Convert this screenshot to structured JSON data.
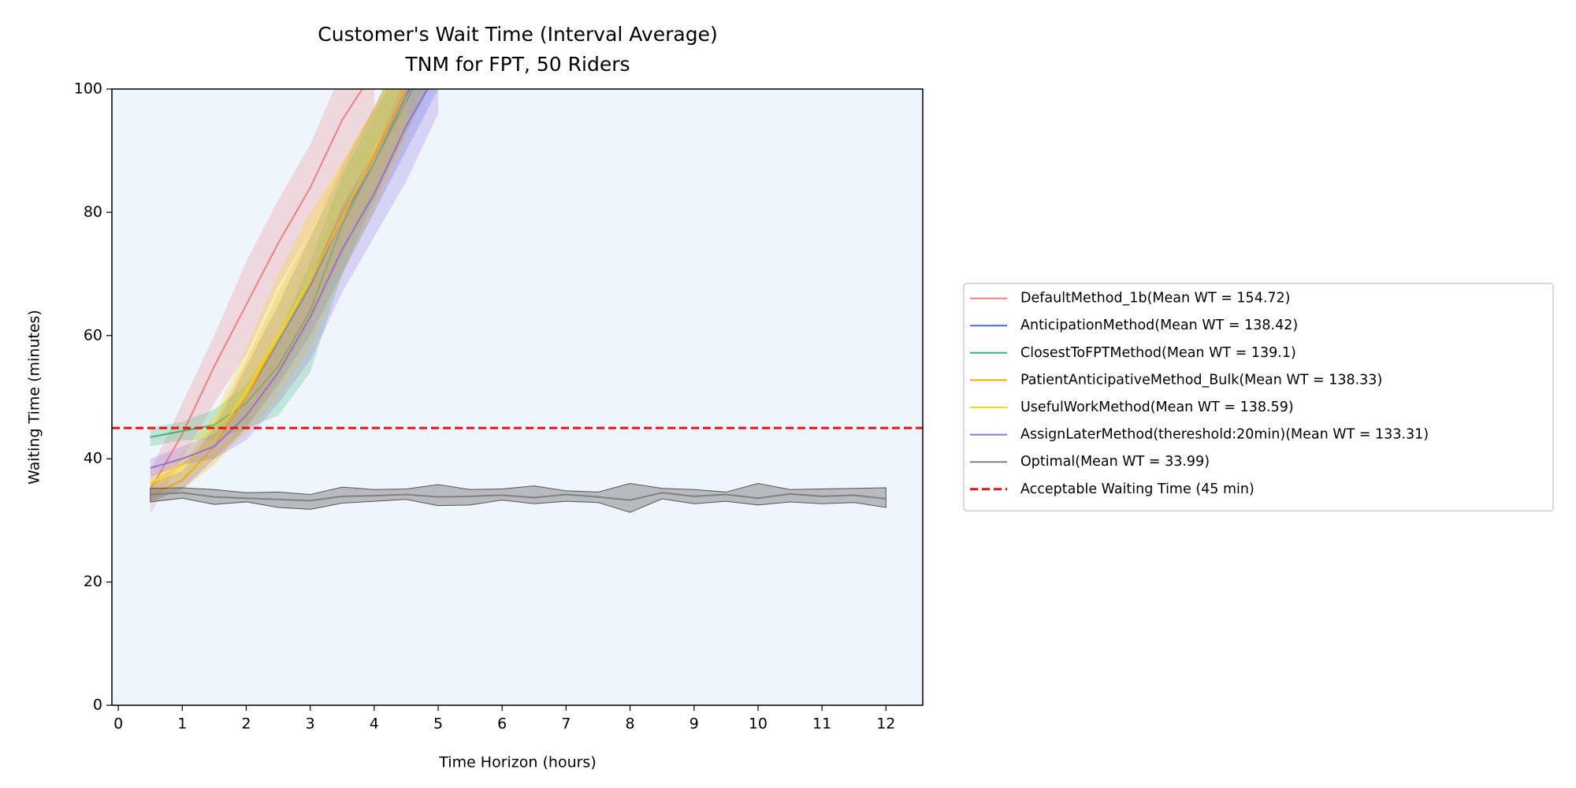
{
  "chart_data": {
    "type": "line",
    "title": "Customer's Wait Time (Interval Average)",
    "subtitle": "TNM for FPT, 50 Riders",
    "x_label": "Time Horizon (hours)",
    "y_label": "Waiting Time (minutes)",
    "x": [
      0.5,
      1,
      1.5,
      2,
      2.5,
      3,
      3.5,
      4,
      4.5,
      5,
      5.5,
      6,
      6.5,
      7,
      7.5,
      8,
      8.5,
      9,
      9.5,
      10,
      10.5,
      11,
      11.5,
      12
    ],
    "xlim": [
      -0.1,
      12.575
    ],
    "ylim": [
      0,
      100
    ],
    "xticks": [
      0,
      1,
      2,
      3,
      4,
      5,
      6,
      7,
      8,
      9,
      10,
      11,
      12
    ],
    "yticks": [
      0,
      20,
      40,
      60,
      80,
      100
    ],
    "background": "#eef5fd",
    "legend": "center left outside",
    "series": [
      {
        "name": "DefaultMethod_1b(Mean WT = 154.72)",
        "color": "#f08080",
        "values": [
          35,
          44,
          55,
          65,
          75,
          84,
          95,
          103,
          null,
          null,
          null,
          null,
          null,
          null,
          null,
          null,
          null,
          null,
          null,
          null,
          null,
          null,
          null,
          null
        ],
        "lower": [
          31,
          40,
          49,
          57,
          68,
          77,
          87,
          96,
          null,
          null,
          null,
          null,
          null,
          null,
          null,
          null,
          null,
          null,
          null,
          null,
          null,
          null,
          null,
          null
        ],
        "upper": [
          38,
          49,
          60,
          72,
          82,
          91,
          103,
          110,
          null,
          null,
          null,
          null,
          null,
          null,
          null,
          null,
          null,
          null,
          null,
          null,
          null,
          null,
          null,
          null
        ]
      },
      {
        "name": "AnticipationMethod(Mean WT = 138.42)",
        "color": "#4169e1",
        "values": [
          34,
          36.5,
          42,
          50,
          59,
          68,
          79,
          88,
          99,
          108,
          null,
          null,
          null,
          null,
          null,
          null,
          null,
          null,
          null,
          null,
          null,
          null,
          null,
          null
        ],
        "lower": [
          33,
          35,
          40,
          45,
          52,
          60,
          70,
          80,
          90,
          100,
          null,
          null,
          null,
          null,
          null,
          null,
          null,
          null,
          null,
          null,
          null,
          null,
          null,
          null
        ],
        "upper": [
          36,
          38,
          45,
          55,
          65,
          76,
          87,
          97,
          108,
          116,
          null,
          null,
          null,
          null,
          null,
          null,
          null,
          null,
          null,
          null,
          null,
          null,
          null,
          null
        ]
      },
      {
        "name": "ClosestToFPTMethod(Mean WT = 139.1)",
        "color": "#3cb371",
        "values": [
          43.5,
          44.5,
          45.5,
          49,
          55,
          64,
          78,
          88,
          98,
          108,
          null,
          null,
          null,
          null,
          null,
          null,
          null,
          null,
          null,
          null,
          null,
          null,
          null,
          null
        ],
        "lower": [
          42,
          43,
          43,
          45,
          47,
          54,
          70,
          82,
          93,
          103,
          null,
          null,
          null,
          null,
          null,
          null,
          null,
          null,
          null,
          null,
          null,
          null,
          null,
          null
        ],
        "upper": [
          45,
          46,
          48,
          52,
          60,
          72,
          86,
          96,
          106,
          114,
          null,
          null,
          null,
          null,
          null,
          null,
          null,
          null,
          null,
          null,
          null,
          null,
          null,
          null
        ]
      },
      {
        "name": "PatientAnticipativeMethod_Bulk(Mean WT = 138.33)",
        "color": "#ffa500",
        "values": [
          34,
          36.5,
          42,
          50,
          60,
          69,
          80,
          89,
          100,
          110,
          null,
          null,
          null,
          null,
          null,
          null,
          null,
          null,
          null,
          null,
          null,
          null,
          null,
          null
        ],
        "lower": [
          33,
          35,
          39,
          45,
          53,
          62,
          73,
          82,
          93,
          104,
          null,
          null,
          null,
          null,
          null,
          null,
          null,
          null,
          null,
          null,
          null,
          null,
          null,
          null
        ],
        "upper": [
          36,
          39,
          46,
          56,
          67,
          77,
          88,
          97,
          108,
          116,
          null,
          null,
          null,
          null,
          null,
          null,
          null,
          null,
          null,
          null,
          null,
          null,
          null,
          null
        ]
      },
      {
        "name": "UsefulWorkMethod(Mean WT = 138.59)",
        "color": "#ffd700",
        "values": [
          36,
          39,
          43,
          51,
          60,
          69,
          79,
          90,
          101,
          null,
          null,
          null,
          null,
          null,
          null,
          null,
          null,
          null,
          null,
          null,
          null,
          null,
          null,
          null
        ],
        "lower": [
          35,
          37,
          40,
          44,
          50,
          58,
          70,
          80,
          92,
          null,
          null,
          null,
          null,
          null,
          null,
          null,
          null,
          null,
          null,
          null,
          null,
          null,
          null,
          null
        ],
        "upper": [
          37,
          41,
          47,
          58,
          70,
          80,
          88,
          97,
          108,
          null,
          null,
          null,
          null,
          null,
          null,
          null,
          null,
          null,
          null,
          null,
          null,
          null,
          null,
          null
        ]
      },
      {
        "name": "AssignLaterMethod(thereshold:20min)(Mean WT = 133.31)",
        "color": "#9370db",
        "values": [
          38.5,
          40,
          42,
          47,
          54,
          63,
          74,
          83,
          94,
          103,
          null,
          null,
          null,
          null,
          null,
          null,
          null,
          null,
          null,
          null,
          null,
          null,
          null,
          null
        ],
        "lower": [
          37,
          39,
          40,
          43,
          49,
          56,
          67,
          76,
          85,
          96,
          null,
          null,
          null,
          null,
          null,
          null,
          null,
          null,
          null,
          null,
          null,
          null,
          null,
          null
        ],
        "upper": [
          40,
          42,
          44,
          50,
          59,
          69,
          81,
          90,
          102,
          110,
          null,
          null,
          null,
          null,
          null,
          null,
          null,
          null,
          null,
          null,
          null,
          null,
          null,
          null
        ]
      },
      {
        "name": "Optimal(Mean WT = 33.99)",
        "color": "#808080",
        "values": [
          34.2,
          34.5,
          33.8,
          33.6,
          33.4,
          33.2,
          33.9,
          34.0,
          34.2,
          33.8,
          33.9,
          34.1,
          33.7,
          34.2,
          33.8,
          33.3,
          34.5,
          33.9,
          34.2,
          33.6,
          34.3,
          33.9,
          34.1,
          33.5
        ],
        "lower": [
          33.0,
          33.6,
          32.6,
          33.0,
          32.1,
          31.8,
          32.8,
          33.1,
          33.4,
          32.4,
          32.5,
          33.3,
          32.7,
          33.1,
          32.9,
          31.3,
          33.5,
          32.7,
          33.1,
          32.5,
          33.0,
          32.7,
          32.9,
          32.1
        ],
        "upper": [
          35.2,
          35.3,
          35.0,
          34.5,
          34.6,
          34.2,
          35.4,
          35.0,
          35.1,
          35.8,
          35.0,
          35.1,
          35.6,
          34.8,
          34.6,
          36.0,
          35.2,
          35.0,
          34.6,
          36.0,
          35.0,
          35.1,
          35.2,
          35.3
        ]
      }
    ],
    "reference_line": {
      "name": "Acceptable Waiting Time (45 min)",
      "value": 45,
      "color": "#ee1111"
    }
  }
}
